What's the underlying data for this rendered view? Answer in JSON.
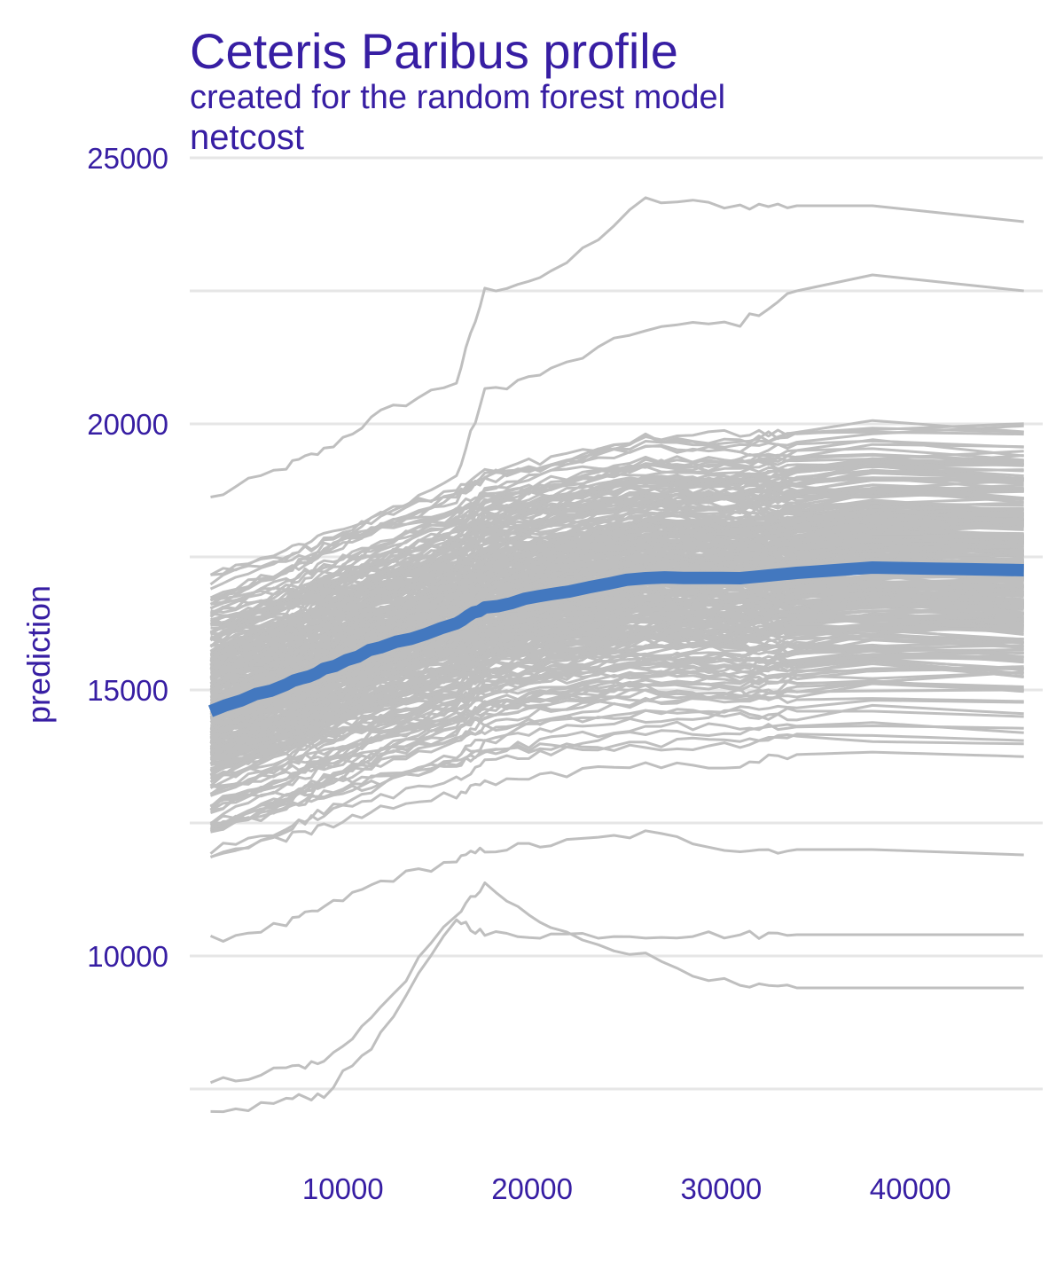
{
  "chart_data": {
    "type": "line",
    "title": "Ceteris Paribus profile",
    "subtitle": "created for the random forest model",
    "facet_label": "netcost",
    "ylabel": "prediction",
    "xlabel": "",
    "xlim": [
      1900,
      47000
    ],
    "ylim": [
      6800,
      25000
    ],
    "x_ticks": [
      10000,
      20000,
      30000,
      40000
    ],
    "y_ticks": [
      10000,
      15000,
      20000,
      25000
    ],
    "y_minor_gridlines": [
      7500,
      12500,
      17500,
      22500
    ],
    "grid": true,
    "legend": "none",
    "colors": {
      "text": "#371ea3",
      "individual": "#bfbfbf",
      "average": "#4378bf",
      "grid": "#e6e6e6"
    },
    "x": [
      3000,
      7000,
      9000,
      12000,
      16000,
      17500,
      21000,
      26000,
      31000,
      34000,
      38000,
      46000
    ],
    "average_profile": {
      "name": "average",
      "values": [
        14600,
        15100,
        15400,
        15800,
        16250,
        16550,
        16800,
        17100,
        17100,
        17200,
        17300,
        17250
      ]
    },
    "individual_profiles_note_count": 300,
    "individual_profiles_sample": [
      [
        18600,
        19200,
        19500,
        20200,
        20800,
        22500,
        22800,
        24200,
        24100,
        24100,
        24100,
        23800
      ],
      [
        16700,
        17300,
        17600,
        18300,
        19000,
        20600,
        21000,
        21800,
        21900,
        22500,
        22800,
        22500
      ],
      [
        14600,
        15100,
        15400,
        15800,
        16250,
        16550,
        16800,
        17100,
        17100,
        17200,
        17300,
        17250
      ],
      [
        12400,
        12900,
        13200,
        13600,
        14000,
        14300,
        14400,
        14600,
        14500,
        14600,
        14600,
        14500
      ],
      [
        10300,
        10600,
        10900,
        11400,
        11800,
        12000,
        12100,
        12300,
        12000,
        12000,
        12000,
        11900
      ],
      [
        7600,
        7900,
        8000,
        9000,
        10800,
        11300,
        10500,
        10000,
        9400,
        9400,
        9400,
        9400
      ],
      [
        7000,
        7300,
        7400,
        8500,
        10700,
        10400,
        10400,
        10400,
        10400,
        10400,
        10400,
        10400
      ]
    ]
  }
}
